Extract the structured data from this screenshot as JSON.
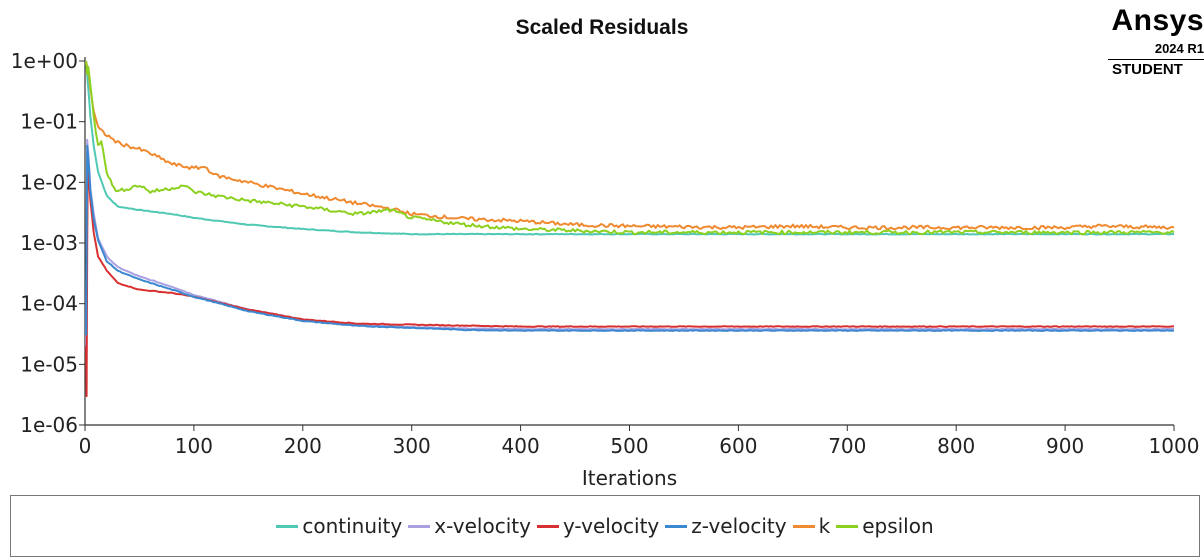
{
  "chart_data": {
    "type": "line",
    "title": "Scaled Residuals",
    "xlabel": "Iterations",
    "ylabel": "",
    "xlim": [
      0,
      1000
    ],
    "ylim": [
      1e-06,
      1
    ],
    "yscale": "log",
    "x_ticks": [
      "0",
      "100",
      "200",
      "300",
      "400",
      "500",
      "600",
      "700",
      "800",
      "900",
      "1000"
    ],
    "y_ticks": [
      "1e+00",
      "1e-01",
      "1e-02",
      "1e-03",
      "1e-04",
      "1e-05",
      "1e-06"
    ],
    "grid": false,
    "legend_position": "bottom",
    "series": [
      {
        "name": "continuity",
        "color": "#4fc8b4",
        "x": [
          1,
          2,
          3,
          5,
          8,
          12,
          20,
          30,
          50,
          80,
          100,
          150,
          200,
          250,
          300,
          400,
          500,
          600,
          700,
          800,
          900,
          1000
        ],
        "y": [
          1,
          0.6,
          0.35,
          0.12,
          0.04,
          0.015,
          0.006,
          0.004,
          0.0035,
          0.003,
          0.0026,
          0.002,
          0.0017,
          0.0015,
          0.0014,
          0.0014,
          0.0014,
          0.0014,
          0.0014,
          0.0014,
          0.0014,
          0.0014
        ]
      },
      {
        "name": "x-velocity",
        "color": "#a8a0e0",
        "x": [
          1,
          2,
          3,
          5,
          8,
          12,
          20,
          30,
          50,
          80,
          100,
          150,
          200,
          250,
          300,
          350,
          400,
          500,
          600,
          700,
          800,
          900,
          1000
        ],
        "y": [
          2e-05,
          0.05,
          0.03,
          0.008,
          0.003,
          0.0012,
          0.0006,
          0.0004,
          0.00028,
          0.00019,
          0.00014,
          8e-05,
          5.5e-05,
          4.5e-05,
          4.1e-05,
          3.9e-05,
          3.8e-05,
          3.8e-05,
          3.8e-05,
          3.8e-05,
          3.8e-05,
          3.8e-05,
          3.8e-05
        ]
      },
      {
        "name": "y-velocity",
        "color": "#d83030",
        "x": [
          1,
          1.5,
          2,
          2.5,
          3,
          5,
          8,
          12,
          20,
          30,
          50,
          80,
          100,
          150,
          200,
          250,
          300,
          400,
          500,
          600,
          700,
          800,
          900,
          1000
        ],
        "y": [
          2e-05,
          3e-06,
          0.001,
          0.02,
          0.015,
          0.005,
          0.0015,
          0.0006,
          0.00035,
          0.00022,
          0.00017,
          0.00015,
          0.00013,
          8e-05,
          5.5e-05,
          4.7e-05,
          4.5e-05,
          4.2e-05,
          4.2e-05,
          4.2e-05,
          4.2e-05,
          4.2e-05,
          4.2e-05,
          4.2e-05
        ]
      },
      {
        "name": "z-velocity",
        "color": "#3a88d0",
        "x": [
          1,
          2,
          3,
          5,
          8,
          12,
          20,
          30,
          50,
          80,
          100,
          150,
          200,
          250,
          300,
          350,
          400,
          500,
          600,
          700,
          800,
          900,
          1000
        ],
        "y": [
          3e-05,
          0.04,
          0.025,
          0.007,
          0.0025,
          0.0011,
          0.0005,
          0.00035,
          0.00025,
          0.00017,
          0.00013,
          7.5e-05,
          5.2e-05,
          4.3e-05,
          4e-05,
          3.7e-05,
          3.6e-05,
          3.6e-05,
          3.6e-05,
          3.6e-05,
          3.6e-05,
          3.6e-05,
          3.6e-05
        ]
      },
      {
        "name": "k",
        "color": "#f08a30",
        "x": [
          1,
          2,
          3,
          5,
          8,
          12,
          15,
          20,
          30,
          50,
          60,
          80,
          100,
          110,
          120,
          150,
          200,
          250,
          280,
          300,
          350,
          400,
          450,
          500,
          600,
          650,
          700,
          800,
          900,
          930,
          1000
        ],
        "y": [
          1,
          0.8,
          0.7,
          0.35,
          0.15,
          0.08,
          0.07,
          0.06,
          0.045,
          0.035,
          0.03,
          0.02,
          0.017,
          0.018,
          0.013,
          0.01,
          0.0065,
          0.0045,
          0.0037,
          0.003,
          0.0025,
          0.0023,
          0.002,
          0.0019,
          0.0018,
          0.0019,
          0.0018,
          0.0018,
          0.0018,
          0.0019,
          0.0018
        ]
      },
      {
        "name": "epsilon",
        "color": "#8cd020",
        "x": [
          1,
          2,
          3,
          5,
          8,
          12,
          15,
          20,
          25,
          30,
          40,
          50,
          60,
          80,
          90,
          100,
          120,
          150,
          200,
          250,
          280,
          300,
          350,
          400,
          450,
          500,
          600,
          700,
          800,
          900,
          1000
        ],
        "y": [
          1,
          0.6,
          0.8,
          0.4,
          0.12,
          0.04,
          0.05,
          0.015,
          0.009,
          0.007,
          0.008,
          0.009,
          0.007,
          0.008,
          0.009,
          0.007,
          0.006,
          0.005,
          0.004,
          0.003,
          0.0035,
          0.0026,
          0.002,
          0.0017,
          0.0016,
          0.0015,
          0.0015,
          0.0015,
          0.0015,
          0.0015,
          0.0015
        ]
      }
    ]
  },
  "logo": {
    "brand": "Ansys",
    "version": "2024 R1",
    "edition": "STUDENT"
  }
}
